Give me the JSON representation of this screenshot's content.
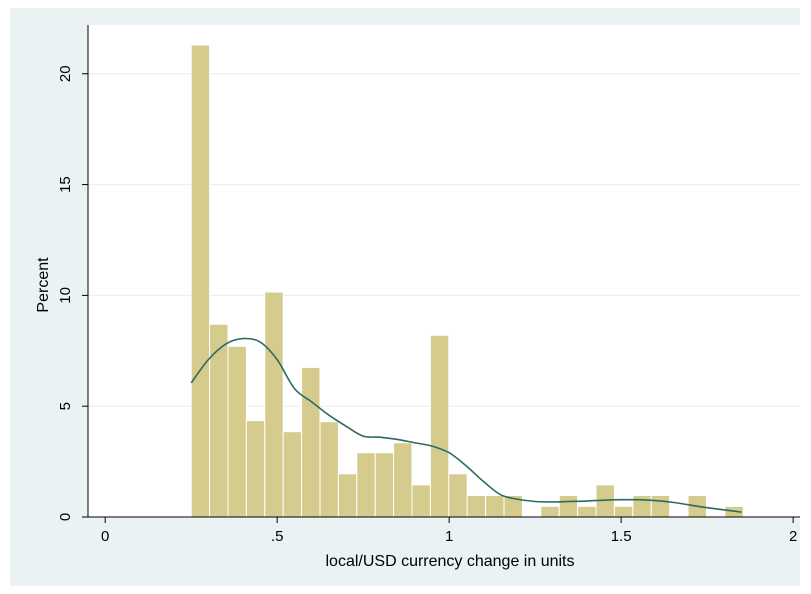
{
  "chart_data": {
    "type": "bar",
    "xlabel": "local/USD currency change in units",
    "ylabel": "Percent",
    "xlim": [
      -0.05,
      2.02
    ],
    "ylim": [
      0,
      22.2
    ],
    "x_ticks": [
      {
        "value": 0,
        "label": "0"
      },
      {
        "value": 0.5,
        "label": ".5"
      },
      {
        "value": 1,
        "label": "1"
      },
      {
        "value": 1.5,
        "label": "1.5"
      },
      {
        "value": 2,
        "label": "2"
      }
    ],
    "y_ticks": [
      {
        "value": 0,
        "label": "0"
      },
      {
        "value": 5,
        "label": "5"
      },
      {
        "value": 10,
        "label": "10"
      },
      {
        "value": 15,
        "label": "15"
      },
      {
        "value": 20,
        "label": "20"
      }
    ],
    "grid": true,
    "bins": {
      "start": 0.25,
      "width": 0.0535,
      "values": [
        21.3,
        8.7,
        7.7,
        4.35,
        10.15,
        3.85,
        6.75,
        4.3,
        1.95,
        2.9,
        2.9,
        3.35,
        1.45,
        8.2,
        1.95,
        0.97,
        0.97,
        0.97,
        0,
        0.48,
        0.97,
        0.48,
        1.45,
        0.48,
        0.97,
        0.97,
        0,
        0.97,
        0,
        0.48
      ]
    },
    "density_curve": {
      "x": [
        0.25,
        0.3,
        0.35,
        0.4,
        0.45,
        0.5,
        0.55,
        0.6,
        0.65,
        0.7,
        0.75,
        0.8,
        0.85,
        0.9,
        0.95,
        1.0,
        1.05,
        1.1,
        1.15,
        1.2,
        1.25,
        1.3,
        1.35,
        1.4,
        1.45,
        1.5,
        1.55,
        1.6,
        1.65,
        1.7,
        1.75,
        1.8,
        1.85
      ],
      "y": [
        6.05,
        7.1,
        7.8,
        8.05,
        7.9,
        7.1,
        5.8,
        5.2,
        4.6,
        4.1,
        3.65,
        3.6,
        3.5,
        3.35,
        3.2,
        2.9,
        2.3,
        1.6,
        1.0,
        0.8,
        0.7,
        0.68,
        0.7,
        0.72,
        0.76,
        0.78,
        0.78,
        0.74,
        0.66,
        0.54,
        0.42,
        0.32,
        0.22
      ]
    },
    "colors": {
      "bar_fill": "#d4cb8d",
      "bar_stroke": "#ffffff",
      "curve": "#2c6b63",
      "plot_background": "#ffffff",
      "outer_background": "#eaf2f3",
      "grid": "#e8eeee",
      "axis": "#000000"
    }
  }
}
